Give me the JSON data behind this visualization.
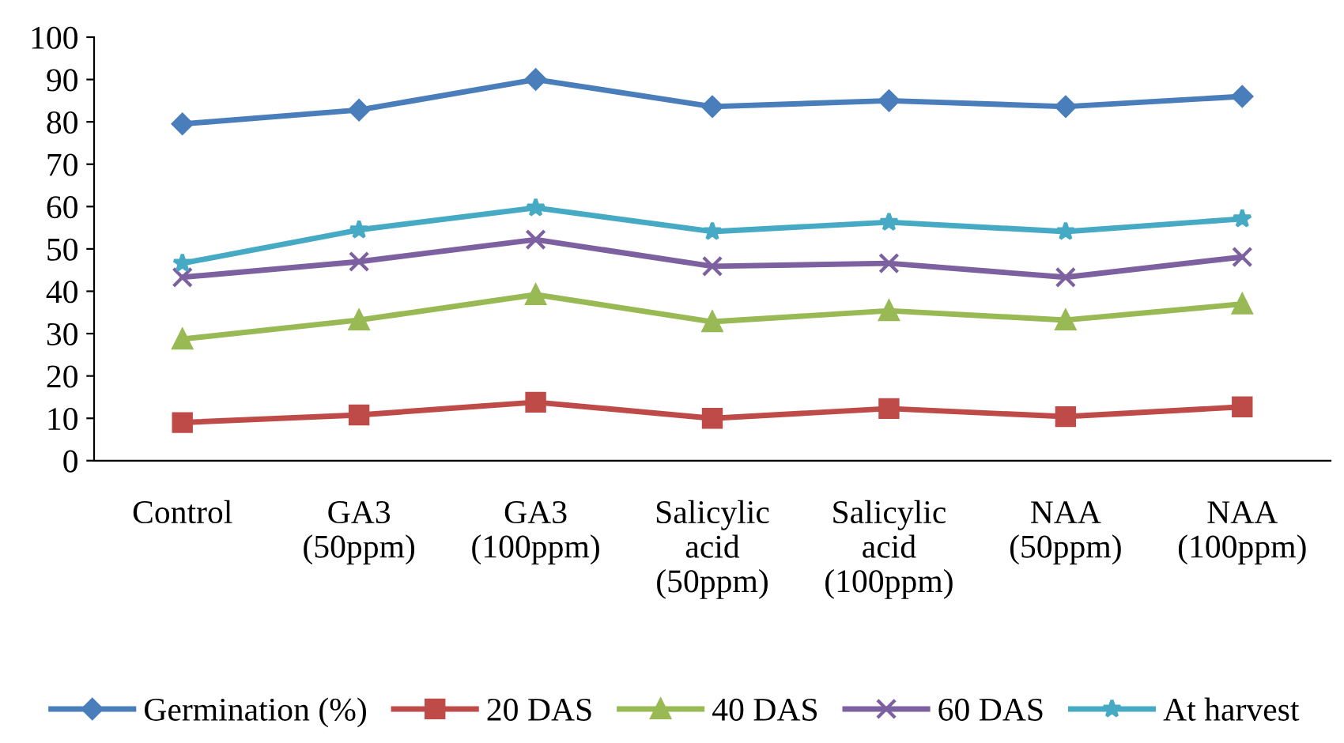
{
  "chart_data": {
    "type": "line",
    "categories": [
      "Control",
      "GA3\n(50ppm)",
      "GA3\n(100ppm)",
      "Salicylic\nacid\n(50ppm)",
      "Salicylic\nacid\n(100ppm)",
      "NAA\n(50ppm)",
      "NAA\n(100ppm)"
    ],
    "series": [
      {
        "name": "Germination (%)",
        "color": "#4a7ebb",
        "marker": "diamond",
        "values": [
          79.5,
          82.8,
          90,
          83.6,
          85,
          83.6,
          86
        ]
      },
      {
        "name": "20 DAS",
        "color": "#be4b48",
        "marker": "square",
        "values": [
          9,
          10.8,
          13.8,
          10,
          12.3,
          10.4,
          12.7
        ]
      },
      {
        "name": "40 DAS",
        "color": "#98b954",
        "marker": "triangle",
        "values": [
          28.7,
          33.2,
          39.2,
          32.8,
          35.4,
          33.2,
          37
        ]
      },
      {
        "name": "60 DAS",
        "color": "#7d60a0",
        "marker": "cross",
        "values": [
          43.3,
          47,
          52.2,
          45.9,
          46.6,
          43.3,
          48.1
        ]
      },
      {
        "name": "At harvest",
        "color": "#46aac5",
        "marker": "star",
        "values": [
          46.6,
          54.5,
          59.7,
          54.1,
          56.3,
          54.1,
          57.1
        ]
      }
    ],
    "ylim": [
      0,
      100
    ],
    "yticks": [
      0,
      10,
      20,
      30,
      40,
      50,
      60,
      70,
      80,
      90,
      100
    ],
    "grid": false,
    "legend": "bottom",
    "line_style": "solid"
  }
}
